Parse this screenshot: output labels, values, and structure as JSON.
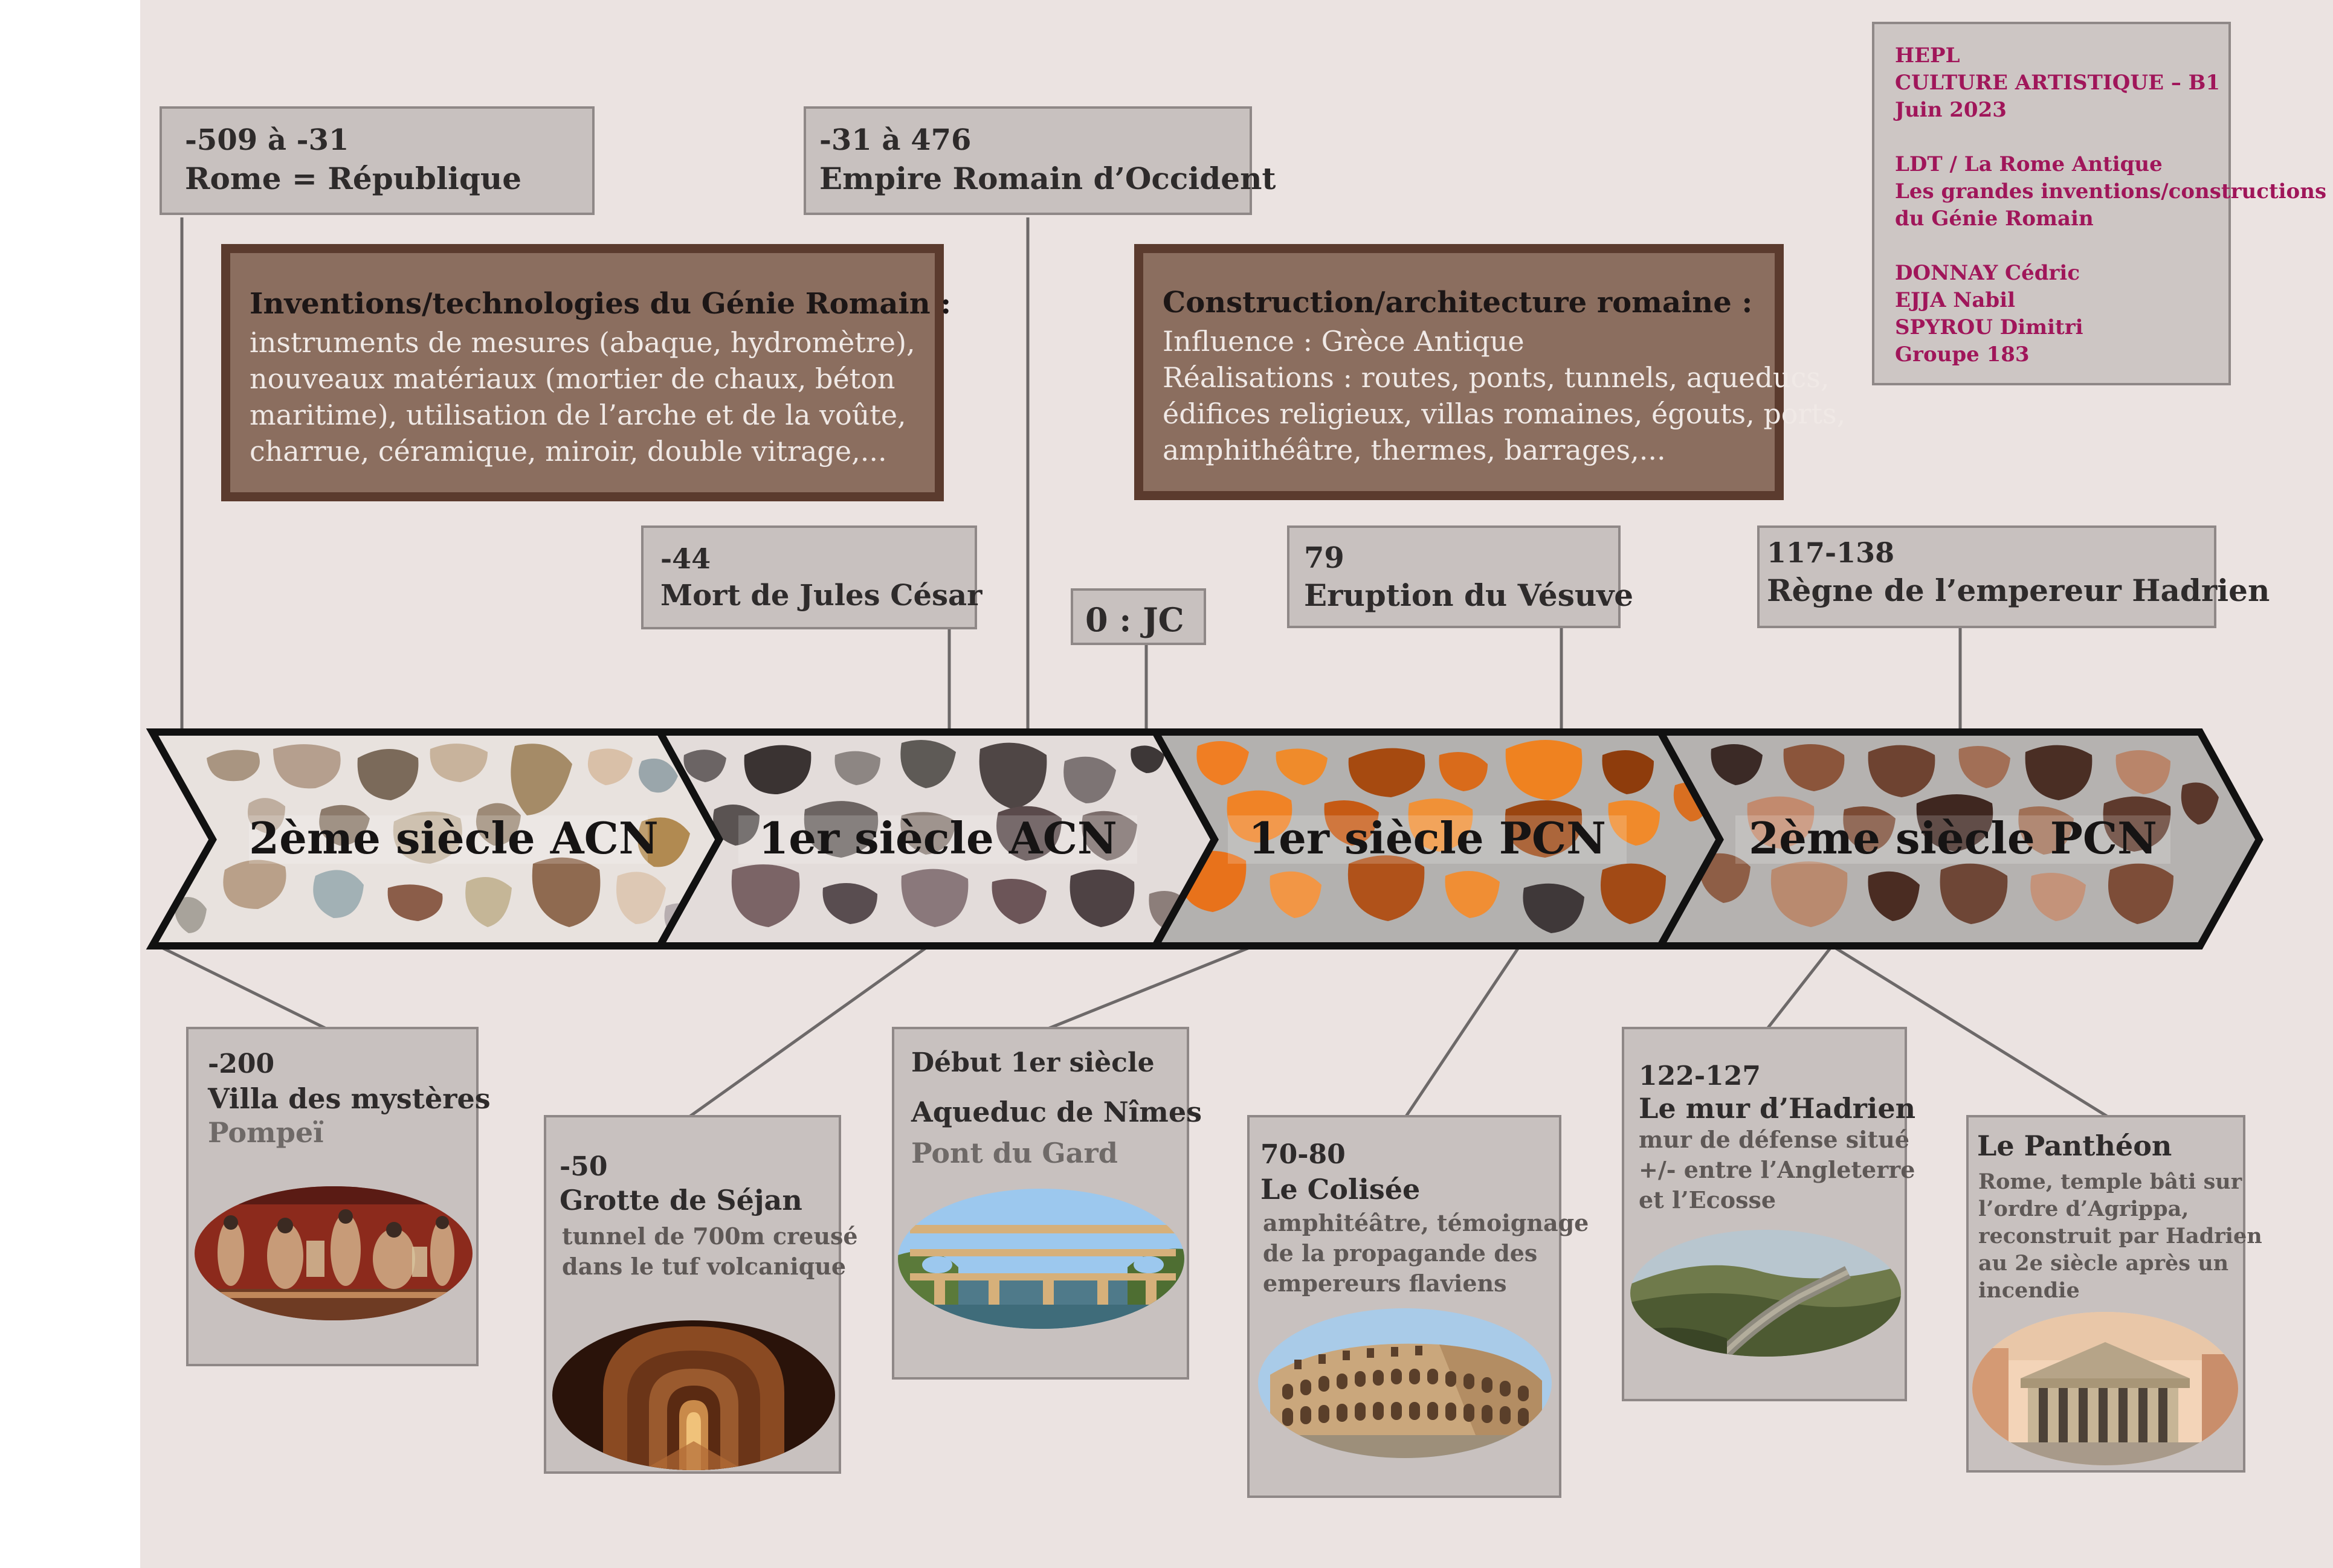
{
  "credits": {
    "school": "HEPL",
    "course": "CULTURE ARTISTIQUE – B1",
    "date": "Juin 2023",
    "topic_line1": "LDT / La Rome Antique",
    "topic_line2": "Les grandes inventions/constructions",
    "topic_line3": "du Génie Romain",
    "author1": "DONNAY Cédric",
    "author2": "EJJA Nabil",
    "author3": "SPYROU Dimitri",
    "group": "Groupe 183"
  },
  "periods": {
    "republic": {
      "dates": "-509 à -31",
      "label": "Rome = République"
    },
    "empire": {
      "dates": "-31 à 476",
      "label": "Empire Romain d’Occident"
    }
  },
  "info_boxes": {
    "inventions": {
      "title": "Inventions/technologies du Génie Romain :",
      "line1": "instruments de mesures (abaque, hydromètre),",
      "line2": "nouveaux matériaux (mortier de chaux, béton",
      "line3": "maritime), utilisation de l’arche et de la voûte,",
      "line4": "charrue, céramique, miroir, double vitrage,..."
    },
    "architecture": {
      "title": "Construction/architecture romaine :",
      "line1": "Influence : Grèce Antique",
      "line2": "Réalisations : routes, ponts, tunnels, aqueducs,",
      "line3": "édifices religieux, villas romaines, égouts, ports,",
      "line4": "amphithéâtre, thermes, barrages,..."
    }
  },
  "events": {
    "caesar": {
      "date": "-44",
      "label": "Mort de Jules César"
    },
    "jc": {
      "label": "0 : JC"
    },
    "vesuvius": {
      "date": "79",
      "label": "Eruption du Vésuve"
    },
    "hadrian_reign": {
      "date": "117-138",
      "label": "Règne de l’empereur Hadrien"
    }
  },
  "timeline": {
    "eras": [
      "2ème siècle ACN",
      "1er  siècle ACN",
      "1er siècle PCN",
      "2ème siècle PCN"
    ]
  },
  "monuments": {
    "villa": {
      "date": "-200",
      "name": "Villa des mystères",
      "place": "Pompeï"
    },
    "sejan": {
      "date": "-50",
      "name": "Grotte de Séjan",
      "desc1": "tunnel de 700m creusé",
      "desc2": "dans le tuf volcanique"
    },
    "nimes": {
      "date": "Début 1er siècle",
      "name": "Aqueduc de Nîmes",
      "place": "Pont du Gard"
    },
    "colisee": {
      "date": "70-80",
      "name": "Le Colisée",
      "desc1": "amphitéâtre, témoignage",
      "desc2": "de la propagande des",
      "desc3": "empereurs flaviens"
    },
    "hadrian_wall": {
      "date": "122-127",
      "name": "Le mur d’Hadrien",
      "desc1": "mur de défense situé",
      "desc2": "+/- entre l’Angleterre",
      "desc3": "et l’Ecosse"
    },
    "pantheon": {
      "name": "Le Panthéon",
      "desc1": "Rome, temple bâti sur",
      "desc2": "l’ordre d’Agrippa,",
      "desc3": "reconstruit par Hadrien",
      "desc4": "au 2e siècle après un",
      "desc5": "incendie"
    }
  },
  "colors": {
    "poster_bg": "#ebe3e1",
    "box_fill": "#c8c1bf",
    "box_border": "#8f8887",
    "info_fill": "#8b6e5f",
    "info_border": "#5b3b2e",
    "credits_text": "#a0165a",
    "connector": "#6d6969"
  }
}
